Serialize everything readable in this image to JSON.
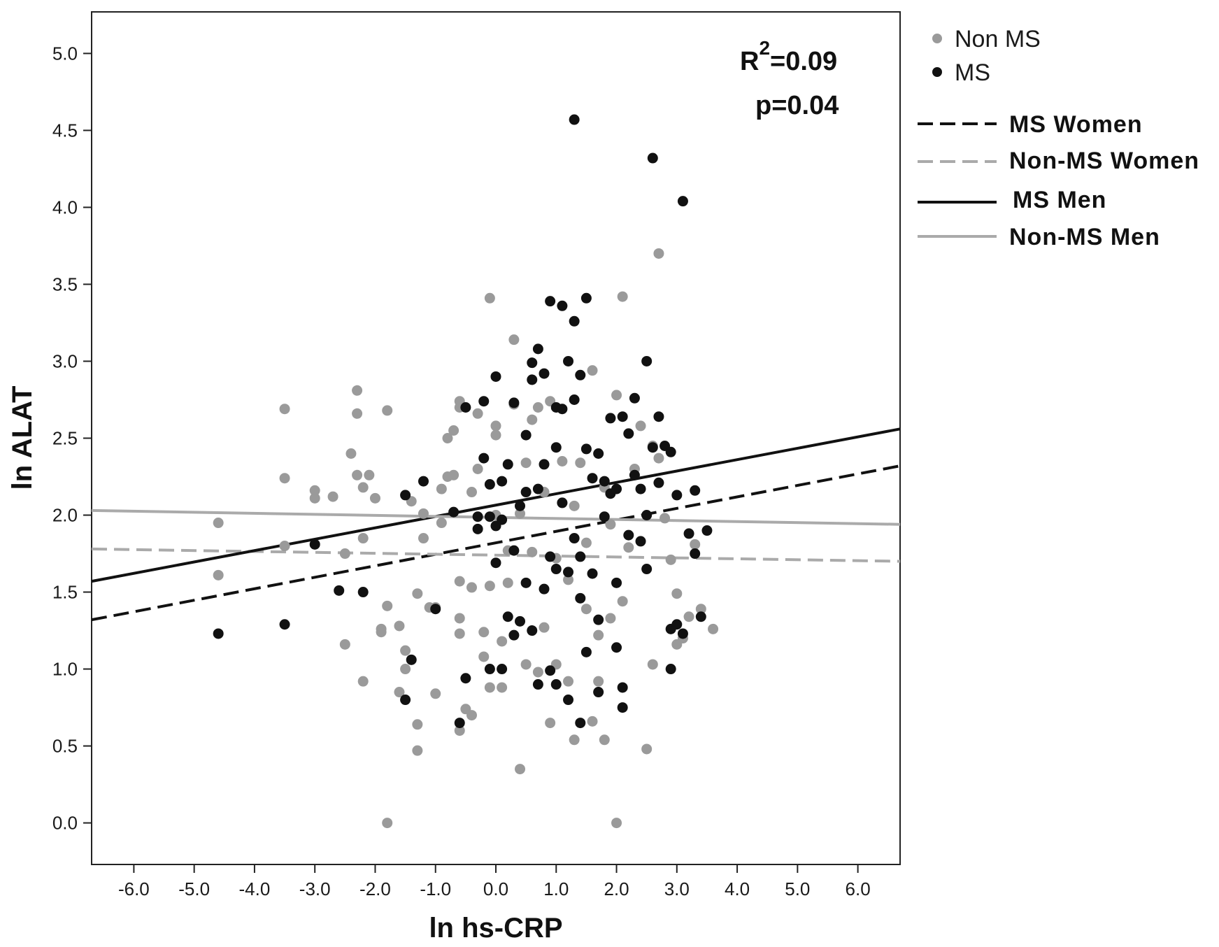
{
  "chart_data": {
    "type": "scatter",
    "xlabel": "ln hs-CRP",
    "ylabel": "ln ALAT",
    "xlim": [
      -6.7,
      6.7
    ],
    "ylim": [
      -0.27,
      5.27
    ],
    "x_ticks": [
      "-6.0",
      "-5.0",
      "-4.0",
      "-3.0",
      "-2.0",
      "-1.0",
      "0.0",
      "1.0",
      "2.0",
      "3.0",
      "4.0",
      "5.0",
      "6.0"
    ],
    "y_ticks": [
      "0.0",
      "0.5",
      "1.0",
      "1.5",
      "2.0",
      "2.5",
      "3.0",
      "3.5",
      "4.0",
      "4.5",
      "5.0"
    ],
    "grid": false,
    "legend_placement": "right",
    "annotations": {
      "r2_prefix": "R",
      "r2_superscript": "2",
      "r2_value": "=0.09",
      "p_value": "p=0.04"
    },
    "legend": {
      "points": [
        {
          "label": "Non MS",
          "color": "#9a9a9a"
        },
        {
          "label": "MS",
          "color": "#111111"
        }
      ],
      "lines": [
        {
          "label": "MS Women",
          "color": "#111111",
          "style": "dashed"
        },
        {
          "label": "Non-MS Women",
          "color": "#aaaaaa",
          "style": "dashed"
        },
        {
          "label": "MS Men",
          "color": "#111111",
          "style": "solid"
        },
        {
          "label": "Non-MS Men",
          "color": "#aaaaaa",
          "style": "solid"
        }
      ]
    },
    "series": [
      {
        "name": "Non MS",
        "color": "#9a9a9a",
        "points": [
          [
            -4.6,
            1.95
          ],
          [
            -4.6,
            1.61
          ],
          [
            -3.5,
            2.69
          ],
          [
            -3.5,
            2.24
          ],
          [
            -3.5,
            1.8
          ],
          [
            -3.0,
            2.16
          ],
          [
            -3.0,
            2.11
          ],
          [
            -2.7,
            2.12
          ],
          [
            -2.5,
            1.75
          ],
          [
            -2.5,
            1.16
          ],
          [
            -2.4,
            2.4
          ],
          [
            -2.3,
            2.81
          ],
          [
            -2.3,
            2.66
          ],
          [
            -2.3,
            2.26
          ],
          [
            -2.2,
            2.18
          ],
          [
            -2.1,
            2.26
          ],
          [
            -2.0,
            2.11
          ],
          [
            -2.2,
            1.85
          ],
          [
            -2.2,
            0.92
          ],
          [
            -1.9,
            1.24
          ],
          [
            -1.9,
            1.26
          ],
          [
            -1.8,
            2.68
          ],
          [
            -1.8,
            1.41
          ],
          [
            -1.8,
            0.0
          ],
          [
            -1.6,
            1.28
          ],
          [
            -1.6,
            0.85
          ],
          [
            -1.5,
            1.12
          ],
          [
            -1.5,
            1.0
          ],
          [
            -1.4,
            2.09
          ],
          [
            -1.3,
            1.49
          ],
          [
            -1.3,
            0.64
          ],
          [
            -1.3,
            0.47
          ],
          [
            -1.2,
            2.01
          ],
          [
            -1.2,
            1.85
          ],
          [
            -1.1,
            1.4
          ],
          [
            -1.0,
            0.84
          ],
          [
            -1.0,
            1.4
          ],
          [
            -0.9,
            1.95
          ],
          [
            -0.9,
            2.17
          ],
          [
            -0.8,
            2.5
          ],
          [
            -0.8,
            2.25
          ],
          [
            -0.7,
            2.55
          ],
          [
            -0.7,
            2.26
          ],
          [
            -0.6,
            2.74
          ],
          [
            -0.6,
            2.7
          ],
          [
            -0.6,
            1.57
          ],
          [
            -0.6,
            1.33
          ],
          [
            -0.6,
            1.23
          ],
          [
            -0.6,
            0.6
          ],
          [
            -0.5,
            0.74
          ],
          [
            -0.4,
            0.7
          ],
          [
            -0.4,
            1.53
          ],
          [
            -0.4,
            2.15
          ],
          [
            -0.3,
            2.66
          ],
          [
            -0.3,
            2.3
          ],
          [
            -0.2,
            1.08
          ],
          [
            -0.2,
            1.24
          ],
          [
            -0.1,
            1.54
          ],
          [
            -0.1,
            0.88
          ],
          [
            -0.1,
            3.41
          ],
          [
            0.0,
            2.52
          ],
          [
            0.0,
            2.58
          ],
          [
            0.0,
            2.0
          ],
          [
            0.1,
            1.18
          ],
          [
            0.1,
            0.88
          ],
          [
            0.2,
            1.56
          ],
          [
            0.2,
            1.77
          ],
          [
            0.3,
            2.72
          ],
          [
            0.3,
            3.14
          ],
          [
            0.4,
            2.01
          ],
          [
            0.4,
            0.35
          ],
          [
            0.5,
            2.34
          ],
          [
            0.5,
            1.03
          ],
          [
            0.6,
            2.62
          ],
          [
            0.6,
            1.76
          ],
          [
            0.7,
            2.7
          ],
          [
            0.7,
            0.98
          ],
          [
            0.8,
            1.27
          ],
          [
            0.8,
            2.15
          ],
          [
            0.9,
            0.65
          ],
          [
            0.9,
            2.74
          ],
          [
            1.0,
            1.72
          ],
          [
            1.0,
            1.03
          ],
          [
            1.1,
            2.35
          ],
          [
            1.1,
            2.08
          ],
          [
            1.2,
            1.58
          ],
          [
            1.2,
            0.92
          ],
          [
            1.3,
            0.54
          ],
          [
            1.3,
            2.06
          ],
          [
            1.4,
            2.34
          ],
          [
            1.5,
            1.82
          ],
          [
            1.5,
            1.39
          ],
          [
            1.6,
            0.66
          ],
          [
            1.6,
            2.94
          ],
          [
            1.7,
            0.92
          ],
          [
            1.7,
            1.22
          ],
          [
            1.8,
            0.54
          ],
          [
            1.8,
            2.18
          ],
          [
            1.9,
            1.33
          ],
          [
            1.9,
            1.94
          ],
          [
            2.0,
            0.0
          ],
          [
            2.0,
            2.78
          ],
          [
            2.1,
            1.44
          ],
          [
            2.1,
            3.42
          ],
          [
            2.2,
            1.79
          ],
          [
            2.3,
            2.3
          ],
          [
            2.4,
            2.58
          ],
          [
            2.5,
            0.48
          ],
          [
            2.6,
            1.03
          ],
          [
            2.6,
            2.45
          ],
          [
            2.7,
            3.7
          ],
          [
            2.7,
            2.37
          ],
          [
            2.8,
            1.98
          ],
          [
            2.9,
            1.71
          ],
          [
            3.0,
            1.16
          ],
          [
            3.0,
            1.49
          ],
          [
            3.1,
            1.2
          ],
          [
            3.2,
            1.34
          ],
          [
            3.3,
            1.81
          ],
          [
            3.4,
            1.39
          ],
          [
            3.6,
            1.26
          ]
        ]
      },
      {
        "name": "MS",
        "color": "#111111",
        "points": [
          [
            -4.6,
            1.23
          ],
          [
            -3.5,
            1.29
          ],
          [
            -3.0,
            1.81
          ],
          [
            -2.6,
            1.51
          ],
          [
            -2.2,
            1.5
          ],
          [
            -1.5,
            2.13
          ],
          [
            -1.4,
            1.06
          ],
          [
            -1.5,
            0.8
          ],
          [
            -1.2,
            2.22
          ],
          [
            -1.0,
            1.39
          ],
          [
            -0.7,
            2.02
          ],
          [
            -0.6,
            0.65
          ],
          [
            -0.5,
            0.94
          ],
          [
            -0.5,
            2.7
          ],
          [
            -0.3,
            1.99
          ],
          [
            -0.3,
            1.91
          ],
          [
            -0.2,
            2.74
          ],
          [
            -0.2,
            2.37
          ],
          [
            -0.1,
            1.99
          ],
          [
            -0.1,
            2.2
          ],
          [
            -0.1,
            1.0
          ],
          [
            0.0,
            1.69
          ],
          [
            0.0,
            1.93
          ],
          [
            0.0,
            2.9
          ],
          [
            0.1,
            2.22
          ],
          [
            0.1,
            1.97
          ],
          [
            0.1,
            1.0
          ],
          [
            0.2,
            1.34
          ],
          [
            0.2,
            2.33
          ],
          [
            0.3,
            1.77
          ],
          [
            0.3,
            2.73
          ],
          [
            0.3,
            1.22
          ],
          [
            0.4,
            1.31
          ],
          [
            0.4,
            2.06
          ],
          [
            0.5,
            2.52
          ],
          [
            0.5,
            2.15
          ],
          [
            0.5,
            1.56
          ],
          [
            0.6,
            2.99
          ],
          [
            0.6,
            1.25
          ],
          [
            0.6,
            2.88
          ],
          [
            0.7,
            3.08
          ],
          [
            0.7,
            2.17
          ],
          [
            0.7,
            0.9
          ],
          [
            0.8,
            2.92
          ],
          [
            0.8,
            1.52
          ],
          [
            0.8,
            2.33
          ],
          [
            0.9,
            3.39
          ],
          [
            0.9,
            1.73
          ],
          [
            0.9,
            0.99
          ],
          [
            1.0,
            2.7
          ],
          [
            1.0,
            1.65
          ],
          [
            1.0,
            0.9
          ],
          [
            1.0,
            2.44
          ],
          [
            1.1,
            3.36
          ],
          [
            1.1,
            2.69
          ],
          [
            1.1,
            2.08
          ],
          [
            1.2,
            1.63
          ],
          [
            1.2,
            3.0
          ],
          [
            1.2,
            0.8
          ],
          [
            1.3,
            2.75
          ],
          [
            1.3,
            1.85
          ],
          [
            1.3,
            3.26
          ],
          [
            1.3,
            4.57
          ],
          [
            1.4,
            2.91
          ],
          [
            1.4,
            1.73
          ],
          [
            1.4,
            1.46
          ],
          [
            1.4,
            0.65
          ],
          [
            1.5,
            3.41
          ],
          [
            1.5,
            2.43
          ],
          [
            1.5,
            1.11
          ],
          [
            1.6,
            2.24
          ],
          [
            1.6,
            1.62
          ],
          [
            1.7,
            0.85
          ],
          [
            1.7,
            2.4
          ],
          [
            1.7,
            1.32
          ],
          [
            1.8,
            2.22
          ],
          [
            1.8,
            1.99
          ],
          [
            1.9,
            2.14
          ],
          [
            1.9,
            2.63
          ],
          [
            2.0,
            1.56
          ],
          [
            2.0,
            2.17
          ],
          [
            2.0,
            1.14
          ],
          [
            2.1,
            0.75
          ],
          [
            2.1,
            0.88
          ],
          [
            2.1,
            2.64
          ],
          [
            2.2,
            2.53
          ],
          [
            2.2,
            1.87
          ],
          [
            2.3,
            2.76
          ],
          [
            2.3,
            2.26
          ],
          [
            2.4,
            2.17
          ],
          [
            2.4,
            1.83
          ],
          [
            2.5,
            3.0
          ],
          [
            2.5,
            1.65
          ],
          [
            2.5,
            2.0
          ],
          [
            2.6,
            4.32
          ],
          [
            2.6,
            2.44
          ],
          [
            2.7,
            2.64
          ],
          [
            2.7,
            2.21
          ],
          [
            2.8,
            2.45
          ],
          [
            2.9,
            2.41
          ],
          [
            2.9,
            1.26
          ],
          [
            2.9,
            1.0
          ],
          [
            3.0,
            1.29
          ],
          [
            3.0,
            2.13
          ],
          [
            3.1,
            4.04
          ],
          [
            3.1,
            1.23
          ],
          [
            3.2,
            1.88
          ],
          [
            3.3,
            2.16
          ],
          [
            3.3,
            1.75
          ],
          [
            3.4,
            1.34
          ],
          [
            3.5,
            1.9
          ]
        ]
      }
    ],
    "fit_lines": [
      {
        "name": "MS Women",
        "x": [
          -6.7,
          6.7
        ],
        "y": [
          1.32,
          2.32
        ]
      },
      {
        "name": "Non-MS Women",
        "x": [
          -6.7,
          6.7
        ],
        "y": [
          1.78,
          1.7
        ]
      },
      {
        "name": "MS Men",
        "x": [
          -6.7,
          6.7
        ],
        "y": [
          1.57,
          2.56
        ]
      },
      {
        "name": "Non-MS Men",
        "x": [
          -6.7,
          6.7
        ],
        "y": [
          2.03,
          1.94
        ]
      }
    ]
  }
}
